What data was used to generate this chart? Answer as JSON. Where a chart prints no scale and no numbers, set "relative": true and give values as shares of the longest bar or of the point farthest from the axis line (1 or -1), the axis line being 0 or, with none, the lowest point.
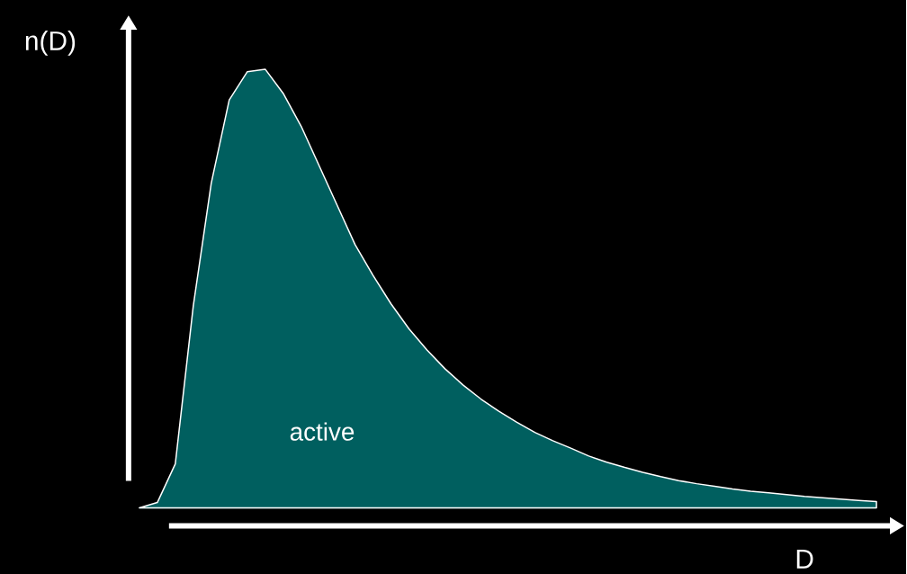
{
  "chart_data": {
    "type": "area",
    "relative": true,
    "xlabel": "D",
    "ylabel": "n(D)",
    "color": "#005f5f",
    "categories": [
      null,
      null,
      null,
      null,
      null,
      null,
      null,
      null,
      null,
      null,
      null,
      null,
      null,
      null,
      null,
      null,
      null,
      null,
      null,
      null,
      null,
      null,
      null,
      null,
      null,
      null,
      null,
      null,
      null,
      null,
      null,
      null,
      null,
      null,
      null,
      null,
      null,
      null,
      null,
      null,
      null,
      null
    ],
    "values": [
      0,
      0.012,
      0.1,
      0.46,
      0.74,
      0.93,
      0.994,
      1,
      0.945,
      0.87,
      0.78,
      0.69,
      0.6,
      0.53,
      0.465,
      0.408,
      0.36,
      0.317,
      0.28,
      0.248,
      0.22,
      0.195,
      0.172,
      0.153,
      0.136,
      0.118,
      0.104,
      0.092,
      0.081,
      0.071,
      0.062,
      0.055,
      0.049,
      0.043,
      0.038,
      0.034,
      0.03,
      0.026,
      0.023,
      0.02,
      0.017,
      0.014
    ],
    "annotations": [
      "active"
    ]
  }
}
